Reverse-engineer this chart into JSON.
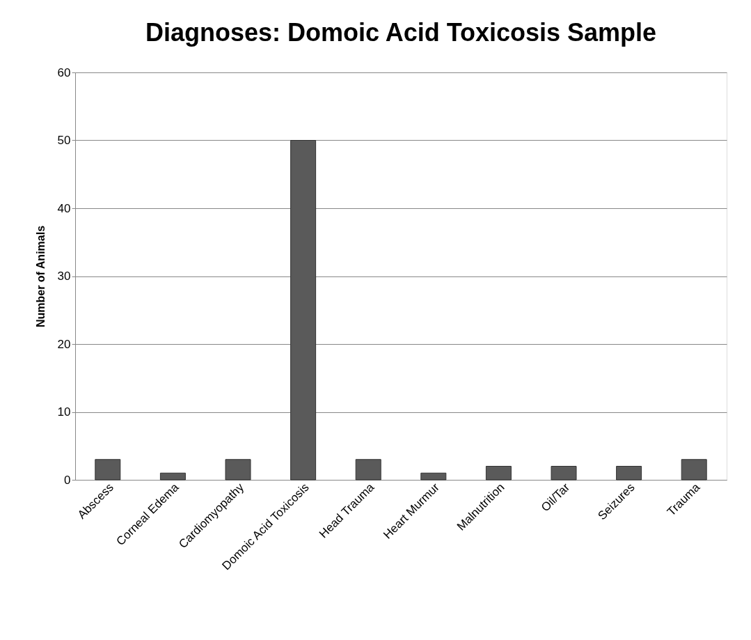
{
  "chart_data": {
    "type": "bar",
    "title": "Diagnoses: Domoic Acid Toxicosis Sample",
    "ylabel": "Number of Animals",
    "categories": [
      "Abscess",
      "Corneal Edema",
      "Cardiomyopathy",
      "Domoic Acid Toxicosis",
      "Head Trauma",
      "Heart Murmur",
      "Malnutrition",
      "Oil/Tar",
      "Seizures",
      "Trauma"
    ],
    "values": [
      3,
      1,
      3,
      50,
      3,
      1,
      2,
      2,
      2,
      3
    ],
    "color": "#5a5a5a",
    "ylim": [
      0,
      60
    ],
    "yticks": [
      0,
      10,
      20,
      30,
      40,
      50,
      60
    ],
    "grid": "y"
  }
}
